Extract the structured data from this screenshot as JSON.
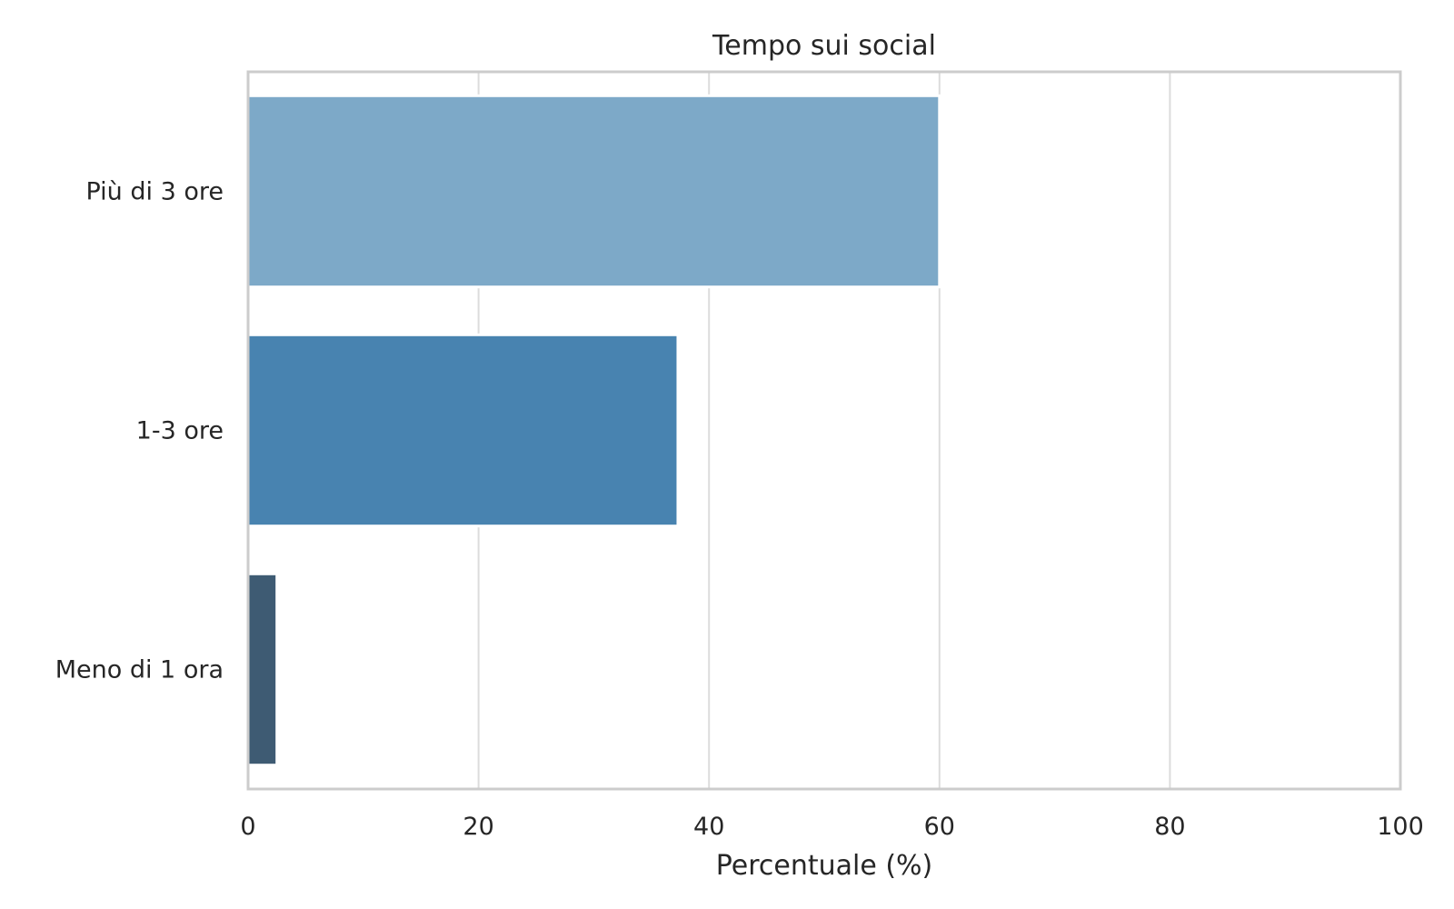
{
  "chart_data": {
    "type": "bar",
    "orientation": "horizontal",
    "title": "Tempo sui social",
    "xlabel": "Percentuale (%)",
    "ylabel": "",
    "categories": [
      "Più di 3 ore",
      "1-3 ore",
      "Meno di 1 ora"
    ],
    "values": [
      60,
      37.3,
      2.5
    ],
    "xlim": [
      0,
      100
    ],
    "xticks": [
      "0",
      "20",
      "40",
      "60",
      "80",
      "100"
    ],
    "grid": "vertical",
    "colors": [
      "#7da9c8",
      "#4883b0",
      "#3e5b73"
    ],
    "grid_color": "#dcdcdc",
    "frame_color": "#cccccc"
  }
}
